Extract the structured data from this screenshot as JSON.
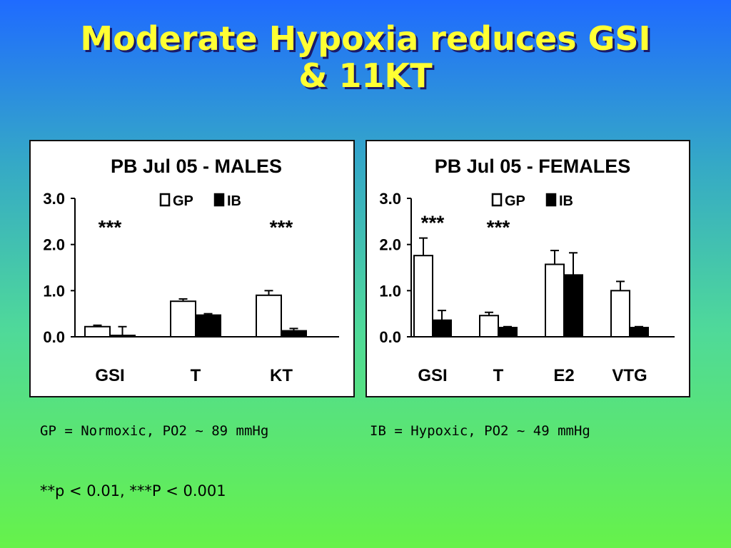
{
  "slide": {
    "title_line1": "Moderate Hypoxia reduces GSI",
    "title_line2": "& 11KT",
    "caption_gp": "GP = Normoxic, PO2 ~ 89 mmHg",
    "caption_ib": "IB = Hypoxic, PO2 ~ 49 mmHg",
    "significance": "**p < 0.01, ***P < 0.001"
  },
  "chart_data": [
    {
      "type": "bar",
      "title": "PB Jul 05 - MALES",
      "categories": [
        "GSI",
        "T",
        "KT"
      ],
      "ylim": [
        0,
        3.0
      ],
      "yticks": [
        "0.0",
        "1.0",
        "2.0",
        "3.0"
      ],
      "legend_position": "top",
      "series": [
        {
          "name": "GP",
          "color": "#ffffff",
          "values": [
            0.22,
            0.77,
            0.9
          ],
          "errors": [
            0.03,
            0.05,
            0.1
          ]
        },
        {
          "name": "IB",
          "color": "#000000",
          "values": [
            0.03,
            0.47,
            0.13
          ],
          "errors": [
            0.19,
            0.03,
            0.05
          ]
        }
      ],
      "annotations": [
        {
          "category": "GSI",
          "text": "***"
        },
        {
          "category": "KT",
          "text": "***"
        }
      ]
    },
    {
      "type": "bar",
      "title": "PB Jul 05 - FEMALES",
      "categories": [
        "GSI",
        "T",
        "E2",
        "VTG"
      ],
      "ylim": [
        0,
        3.0
      ],
      "yticks": [
        "0.0",
        "1.0",
        "2.0",
        "3.0"
      ],
      "legend_position": "top",
      "series": [
        {
          "name": "GP",
          "color": "#ffffff",
          "values": [
            1.76,
            0.46,
            1.57,
            1.0
          ],
          "errors": [
            0.38,
            0.07,
            0.3,
            0.2
          ]
        },
        {
          "name": "IB",
          "color": "#000000",
          "values": [
            0.36,
            0.2,
            1.34,
            0.2
          ],
          "errors": [
            0.21,
            0.02,
            0.48,
            0.02
          ]
        }
      ],
      "annotations": [
        {
          "category": "GSI",
          "text": "***"
        },
        {
          "category": "T",
          "text": "***"
        }
      ]
    }
  ]
}
